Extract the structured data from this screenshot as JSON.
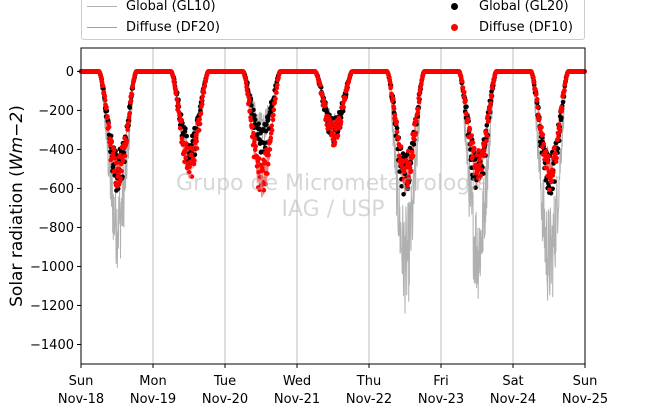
{
  "chart_data": {
    "type": "line",
    "title": "",
    "ylabel": "Solar radiation (Wm−2)",
    "ylabel_parts": {
      "prefix": "Solar radiation (",
      "unit": "Wm−2",
      "suffix": ")"
    },
    "xlabel": "",
    "ylim": [
      -1500,
      120
    ],
    "xlim": [
      0,
      7
    ],
    "y_ticks": [
      0,
      -200,
      -400,
      -600,
      -800,
      -1000,
      -1200,
      -1400
    ],
    "x_ticks": [
      {
        "day": "Sun",
        "date": "Nov-18"
      },
      {
        "day": "Mon",
        "date": "Nov-19"
      },
      {
        "day": "Tue",
        "date": "Nov-20"
      },
      {
        "day": "Wed",
        "date": "Nov-21"
      },
      {
        "day": "Thu",
        "date": "Nov-22"
      },
      {
        "day": "Fri",
        "date": "Nov-23"
      },
      {
        "day": "Sat",
        "date": "Nov-24"
      },
      {
        "day": "Sun",
        "date": "Nov-25"
      }
    ],
    "grid": "vertical",
    "legend_position": "top",
    "watermark": [
      "Grupo de Micrometeorologia",
      "IAG / USP"
    ],
    "series": [
      {
        "name": "Global (GL10)",
        "style": "line",
        "color": "#b0b0b0",
        "daily_min": [
          -1010,
          -560,
          -380,
          -380,
          -1250,
          -1180,
          -1230
        ]
      },
      {
        "name": "Diffuse (DF20)",
        "style": "line",
        "color": "#f08080",
        "daily_min": [
          -600,
          -560,
          -650,
          -360,
          -640,
          -600,
          -560
        ]
      },
      {
        "name": "Global (GL20)",
        "style": "dots",
        "color": "#000000",
        "daily_min": [
          -620,
          -500,
          -430,
          -370,
          -650,
          -640,
          -660
        ]
      },
      {
        "name": "Diffuse (DF10)",
        "style": "dots",
        "color": "#ff0000",
        "daily_min": [
          -610,
          -560,
          -640,
          -380,
          -600,
          -580,
          -610
        ]
      }
    ]
  }
}
